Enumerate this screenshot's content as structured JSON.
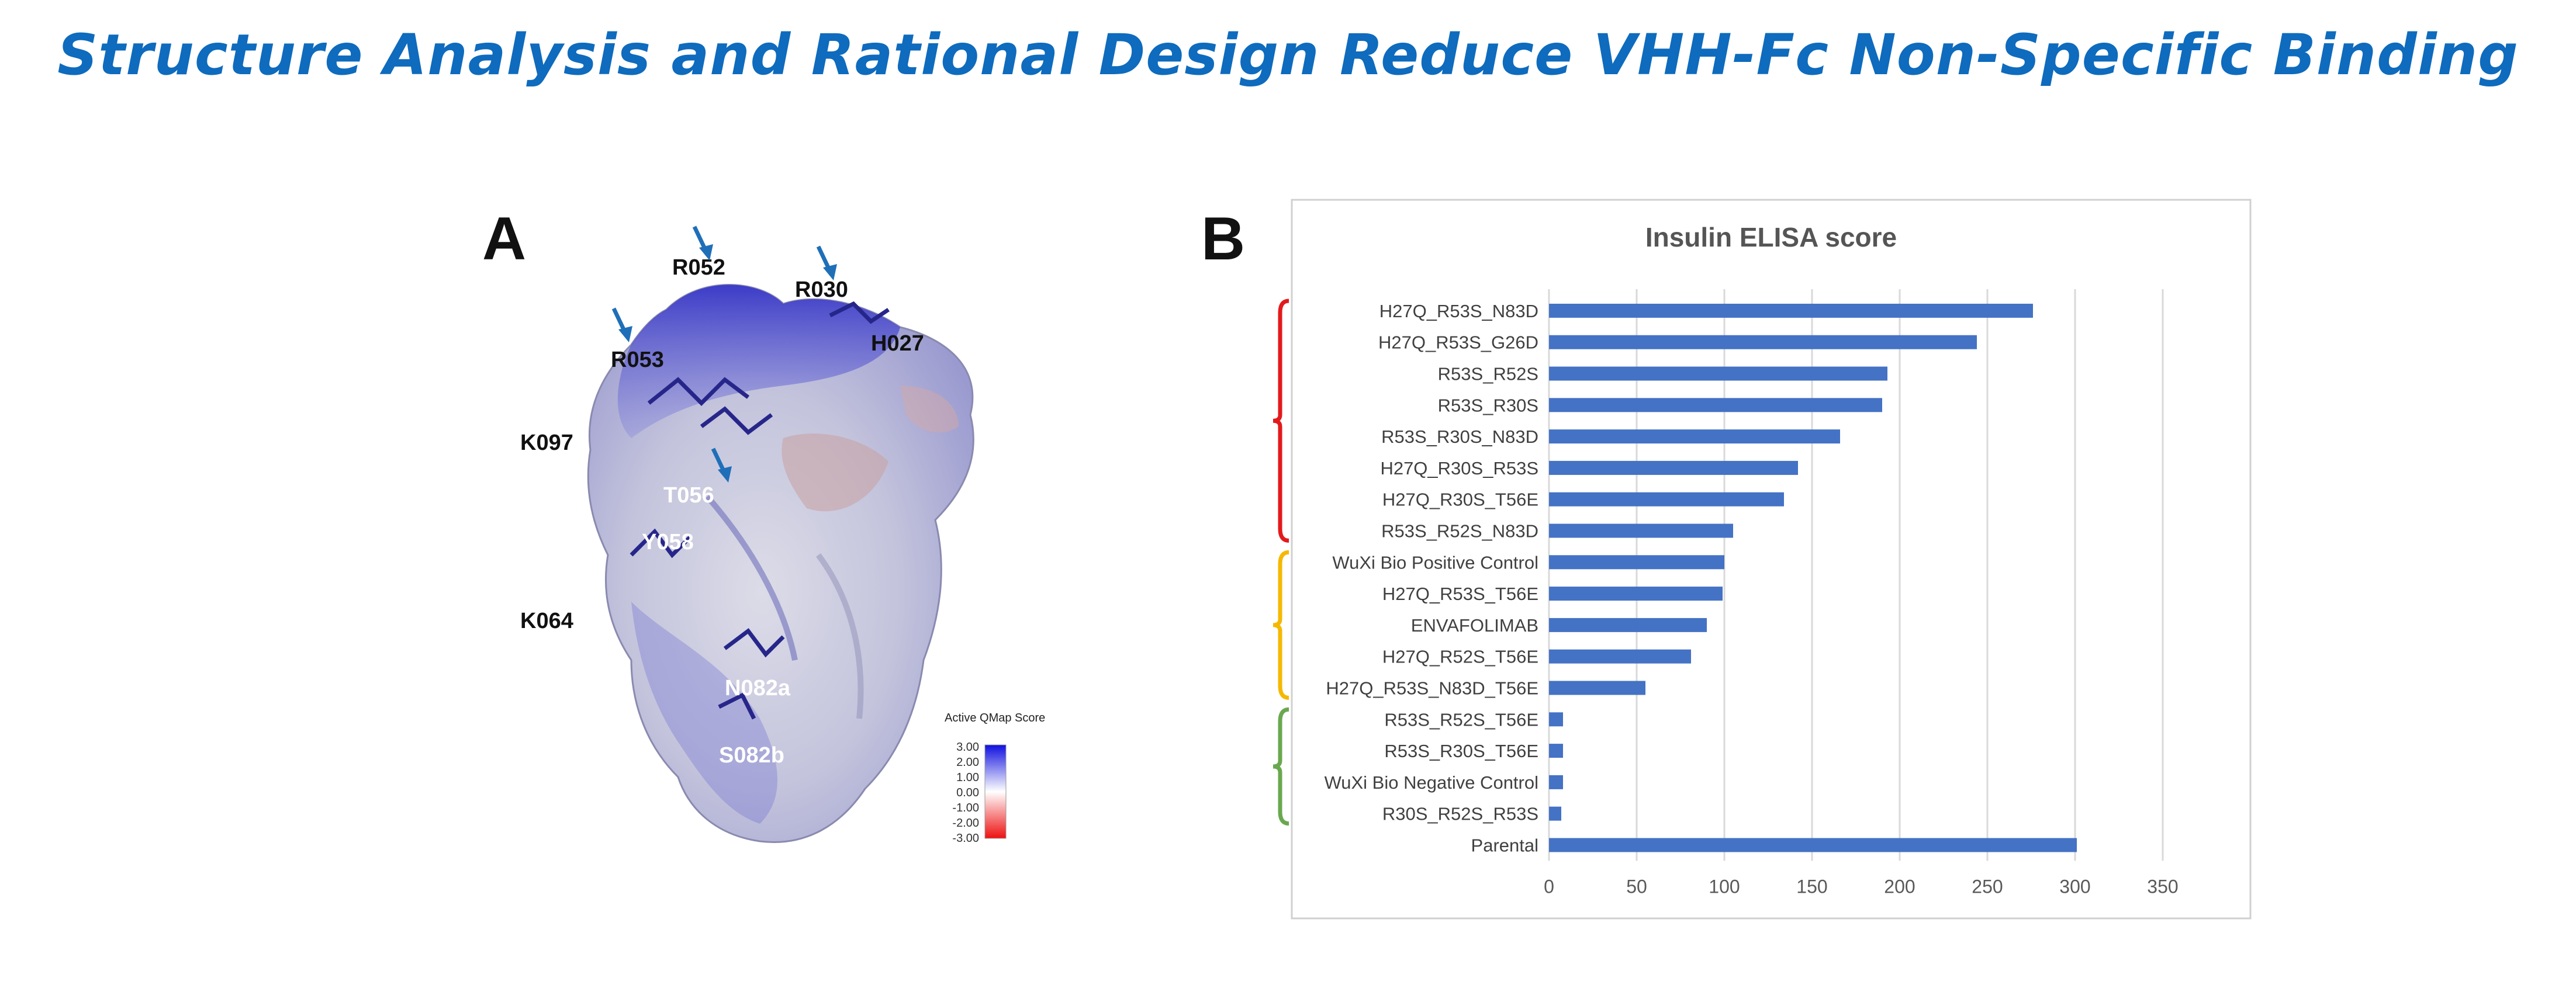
{
  "title": "Structure Analysis and Rational Design Reduce VHH-Fc Non-Specific Binding",
  "panels": {
    "a": "A",
    "b": "B"
  },
  "structure": {
    "residues": [
      "R052",
      "R030",
      "H027",
      "R053",
      "K097",
      "T056",
      "Y058",
      "K064",
      "N082a",
      "S082b"
    ],
    "colorbar": {
      "title": "Active QMap Score",
      "ticks": [
        "3.00",
        "2.00",
        "1.00",
        "0.00",
        "-1.00",
        "-2.00",
        "-3.00"
      ],
      "colors": {
        "positive": "#1010e0",
        "neutral": "#ffffff",
        "negative": "#ee1010"
      }
    },
    "arrow_color": "#1f6fb8"
  },
  "chart_data": {
    "type": "bar",
    "orientation": "horizontal",
    "title": "Insulin ELISA score",
    "categories": [
      "H27Q_R53S_N83D",
      "H27Q_R53S_G26D",
      "R53S_R52S",
      "R53S_R30S",
      "R53S_R30S_N83D",
      "H27Q_R30S_R53S",
      "H27Q_R30S_T56E",
      "R53S_R52S_N83D",
      "WuXi Bio Positive Control",
      "H27Q_R53S_T56E",
      "ENVAFOLIMAB",
      "H27Q_R52S_T56E",
      "H27Q_R53S_N83D_T56E",
      "R53S_R52S_T56E",
      "R53S_R30S_T56E",
      "WuXi Bio Negative Control",
      "R30S_R52S_R53S",
      "Parental"
    ],
    "values": [
      276,
      244,
      193,
      190,
      166,
      142,
      134,
      105,
      100,
      99,
      90,
      81,
      55,
      8,
      8,
      8,
      7,
      301
    ],
    "xlim": [
      0,
      350
    ],
    "xticks": [
      "0",
      "50",
      "100",
      "150",
      "200",
      "250",
      "300",
      "350"
    ],
    "grid": true,
    "bar_color": "#4472c4",
    "groups": [
      {
        "first": 0,
        "last": 7,
        "color": "#e31a1c"
      },
      {
        "first": 8,
        "last": 12,
        "color": "#f5b800"
      },
      {
        "first": 13,
        "last": 16,
        "color": "#6aa84f"
      }
    ]
  }
}
